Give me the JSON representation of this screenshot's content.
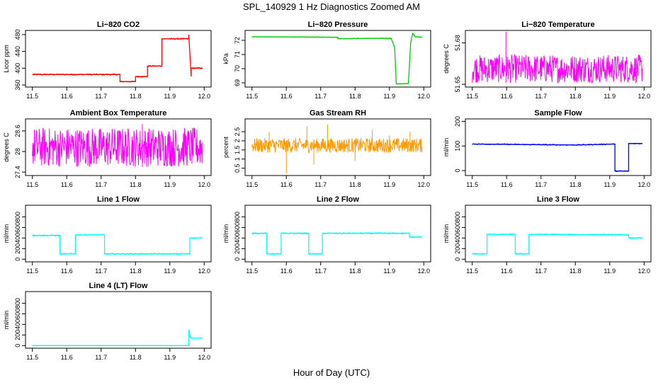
{
  "figure": {
    "title": "SPL_140929  1 Hz Diagnostics Zoomed AM",
    "xlabel": "Hour of Day (UTC)"
  },
  "chart_data": [
    {
      "type": "line",
      "title": "Li−820 CO2",
      "ylabel": "Licor ppm",
      "color": "#ff0000",
      "xlim": [
        11.48,
        12.02
      ],
      "ylim": [
        355,
        490
      ],
      "yticks": [
        360,
        400,
        440,
        480
      ],
      "xticks": [
        11.5,
        11.6,
        11.7,
        11.8,
        11.9,
        12.0
      ],
      "noise": 1.5,
      "series": [
        {
          "x": [
            11.5,
            11.755,
            11.755,
            11.8,
            11.8,
            11.835,
            11.835,
            11.877,
            11.877,
            11.955,
            11.955,
            11.962,
            11.962,
            11.995
          ],
          "y": [
            385,
            385,
            368,
            368,
            380,
            380,
            405,
            405,
            470,
            470,
            480,
            380,
            400,
            400
          ]
        }
      ]
    },
    {
      "type": "line",
      "title": "Li−820 Pressure",
      "ylabel": "kPa",
      "color": "#00cc00",
      "xlim": [
        11.48,
        12.02
      ],
      "ylim": [
        68.7,
        72.7
      ],
      "yticks": [
        69,
        70,
        71,
        72
      ],
      "xticks": [
        11.5,
        11.6,
        11.7,
        11.8,
        11.9,
        12.0
      ],
      "noise": 0.02,
      "series": [
        {
          "x": [
            11.5,
            11.75,
            11.75,
            11.905,
            11.915,
            11.92,
            11.955,
            11.962,
            11.968,
            11.975,
            11.995
          ],
          "y": [
            72.25,
            72.22,
            72.12,
            72.15,
            71.5,
            68.92,
            68.95,
            71.9,
            72.5,
            72.25,
            72.22
          ]
        }
      ]
    },
    {
      "type": "line",
      "title": "Li−820 Temperature",
      "ylabel": "degrees C",
      "color": "#ff00ff",
      "xlim": [
        11.48,
        12.02
      ],
      "ylim": [
        51.648,
        51.689
      ],
      "yticks": [
        51.65,
        51.68
      ],
      "xticks": [
        11.5,
        11.6,
        11.7,
        11.8,
        11.9,
        12.0
      ],
      "band": [
        51.651,
        51.6715
      ],
      "spike": {
        "x": 11.598,
        "y": 51.688
      },
      "series": []
    },
    {
      "type": "line",
      "title": "Ambient Box Temperature",
      "ylabel": "degrees C",
      "color": "#ff00ff",
      "xlim": [
        11.48,
        12.02
      ],
      "ylim": [
        27.3,
        28.95
      ],
      "yticks": [
        27.4,
        28.0,
        28.6
      ],
      "xticks": [
        11.5,
        11.6,
        11.7,
        11.8,
        11.9,
        12.0
      ],
      "band": [
        27.55,
        28.7
      ],
      "spike": {
        "x": 11.82,
        "y": 28.8
      },
      "series": []
    },
    {
      "type": "line",
      "title": "Gas Stream RH",
      "ylabel": "percent",
      "color": "#ff9900",
      "xlim": [
        11.48,
        12.02
      ],
      "ylim": [
        0.1,
        3.2
      ],
      "yticks": [
        0.5,
        1.0,
        1.5,
        2.0,
        2.5
      ],
      "xticks": [
        11.5,
        11.6,
        11.7,
        11.8,
        11.9,
        12.0
      ],
      "band": [
        1.35,
        2.15
      ],
      "spikes": [
        [
          11.6,
          0.2
        ],
        [
          11.66,
          2.8
        ],
        [
          11.68,
          0.7
        ],
        [
          11.72,
          2.9
        ],
        [
          11.85,
          2.6
        ],
        [
          11.96,
          2.5
        ],
        [
          11.55,
          2.5
        ],
        [
          11.8,
          0.9
        ],
        [
          11.9,
          2.3
        ]
      ],
      "series": []
    },
    {
      "type": "line",
      "title": "Sample Flow",
      "ylabel": "ml/min",
      "color": "#0000ff",
      "xlim": [
        11.48,
        12.02
      ],
      "ylim": [
        -20,
        210
      ],
      "yticks": [
        0,
        100,
        200
      ],
      "xticks": [
        11.5,
        11.6,
        11.7,
        11.8,
        11.9,
        12.0
      ],
      "noise": 2,
      "series": [
        {
          "x": [
            11.5,
            11.8,
            11.915,
            11.915,
            11.955,
            11.955,
            11.995
          ],
          "y": [
            108,
            104,
            108,
            -2,
            -2,
            110,
            110
          ]
        }
      ]
    },
    {
      "type": "line",
      "title": "Line 1 Flow",
      "ylabel": "ml/min",
      "color": "#00ffff",
      "xlim": [
        11.48,
        12.02
      ],
      "ylim": [
        -50,
        1020
      ],
      "yticks": [
        0,
        200,
        400,
        600,
        800
      ],
      "xticks": [
        11.5,
        11.6,
        11.7,
        11.8,
        11.9,
        12.0
      ],
      "noise": 12,
      "series": [
        {
          "x": [
            11.5,
            11.58,
            11.58,
            11.625,
            11.625,
            11.71,
            11.71,
            11.958,
            11.958,
            11.995
          ],
          "y": [
            450,
            450,
            100,
            100,
            460,
            460,
            100,
            100,
            400,
            400
          ]
        }
      ]
    },
    {
      "type": "line",
      "title": "Line 2 Flow",
      "ylabel": "ml/min",
      "color": "#00ffff",
      "xlim": [
        11.48,
        12.02
      ],
      "ylim": [
        -50,
        1020
      ],
      "yticks": [
        0,
        200,
        400,
        600,
        800
      ],
      "xticks": [
        11.5,
        11.6,
        11.7,
        11.8,
        11.9,
        12.0
      ],
      "noise": 12,
      "series": [
        {
          "x": [
            11.5,
            11.543,
            11.543,
            11.585,
            11.585,
            11.665,
            11.665,
            11.705,
            11.705,
            11.958,
            11.958,
            11.995
          ],
          "y": [
            490,
            490,
            100,
            100,
            490,
            490,
            100,
            100,
            490,
            490,
            420,
            420
          ]
        }
      ]
    },
    {
      "type": "line",
      "title": "Line 3 Flow",
      "ylabel": "ml/min",
      "color": "#00ffff",
      "xlim": [
        11.48,
        12.02
      ],
      "ylim": [
        -50,
        1020
      ],
      "yticks": [
        0,
        200,
        400,
        600,
        800
      ],
      "xticks": [
        11.5,
        11.6,
        11.7,
        11.8,
        11.9,
        12.0
      ],
      "noise": 12,
      "series": [
        {
          "x": [
            11.5,
            11.543,
            11.543,
            11.625,
            11.625,
            11.665,
            11.665,
            11.955,
            11.955,
            11.995
          ],
          "y": [
            100,
            100,
            470,
            470,
            100,
            100,
            470,
            460,
            400,
            400
          ]
        }
      ]
    },
    {
      "type": "line",
      "title": "Line 4 (LT) Flow",
      "ylabel": "ml/min",
      "color": "#00ffff",
      "xlim": [
        11.48,
        12.02
      ],
      "ylim": [
        -50,
        1020
      ],
      "yticks": [
        0,
        200,
        400,
        600,
        800
      ],
      "xticks": [
        11.5,
        11.6,
        11.7,
        11.8,
        11.9,
        12.0
      ],
      "noise": 1,
      "series": [
        {
          "x": [
            11.5,
            11.955,
            11.955,
            11.96,
            11.962,
            11.995
          ],
          "y": [
            0,
            0,
            300,
            150,
            140,
            140
          ]
        }
      ]
    }
  ]
}
